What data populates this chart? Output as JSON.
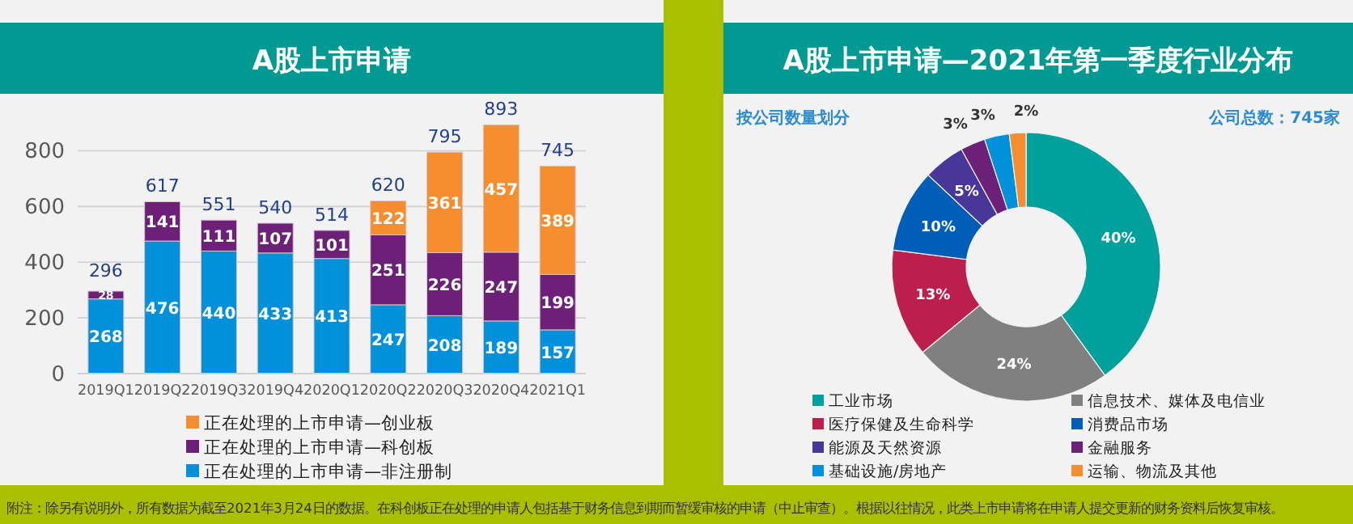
{
  "chart_data": [
    {
      "type": "bar",
      "title": "A股上市申请",
      "stacked": true,
      "categories": [
        "2019Q1",
        "2019Q2",
        "2019Q3",
        "2019Q4",
        "2020Q1",
        "2020Q2",
        "2020Q3",
        "2020Q4",
        "2021Q1"
      ],
      "series": [
        {
          "name": "正在处理的上市申请—非注册制",
          "color": "#0091da",
          "values": [
            268,
            476,
            440,
            433,
            413,
            247,
            208,
            189,
            157
          ]
        },
        {
          "name": "正在处理的上市申请—科创板",
          "color": "#6d2077",
          "values": [
            28,
            141,
            111,
            107,
            101,
            251,
            226,
            247,
            199
          ]
        },
        {
          "name": "正在处理的上市申请—创业板",
          "color": "#f68d2e",
          "values": [
            null,
            null,
            null,
            null,
            null,
            122,
            361,
            457,
            389
          ]
        }
      ],
      "totals": [
        "296",
        "617",
        "551",
        "540",
        "514",
        "620",
        "795",
        "893",
        "745"
      ],
      "data_labels": true,
      "ylim": [
        0,
        900
      ],
      "yticks": [
        0,
        200,
        400,
        600,
        800
      ],
      "grid": "y",
      "legend": "bottom",
      "annotations": [
        "附注：除另有说明外，所有数据为截至2021年3月24日的数据。在科创板正在处理的申请人包括基于财务信息到期而暂缓审核的申请（中止审查）。根据以往情况，此类上市申请将在申请人提交更新的财务资料后恢复审核。"
      ]
    },
    {
      "type": "donut",
      "title": "A股上市申请—2021年第一季度行业分布",
      "subtitle": "按公司数量划分",
      "categories": [
        "工业市场",
        "信息技术、媒体及电信业",
        "医疗保健及生命科学",
        "消费品市场",
        "能源及天然资源",
        "金融服务",
        "基础设施/房地产",
        "运输、物流及其他"
      ],
      "values": [
        40,
        24,
        13,
        10,
        5,
        3,
        3,
        2
      ],
      "colors": [
        "#00a19c",
        "#808080",
        "#bc1f4b",
        "#005eb8",
        "#483698",
        "#6d2077",
        "#0091da",
        "#f68d2e"
      ],
      "value_labels": [
        "40%",
        "24%",
        "13%",
        "10%",
        "5%",
        "3%",
        "3%",
        "2%"
      ],
      "legend": "bottom",
      "annotations": [
        "公司总数：745家"
      ]
    }
  ]
}
